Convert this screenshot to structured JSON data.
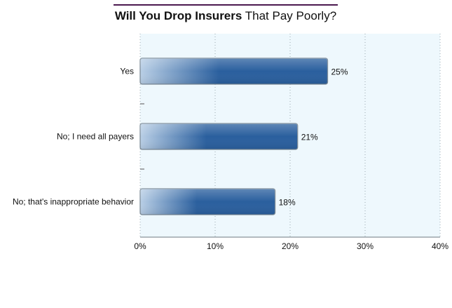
{
  "chart_data": {
    "type": "bar",
    "orientation": "horizontal",
    "title_bold": "Will You Drop Insurers",
    "title_regular": "That Pay Poorly?",
    "categories": [
      "Yes",
      "No; I need all payers",
      "No; that's inappropriate behavior"
    ],
    "values": [
      25,
      21,
      18
    ],
    "value_labels": [
      "25%",
      "21%",
      "18%"
    ],
    "xlim": [
      0,
      40
    ],
    "x_ticks": [
      0,
      10,
      20,
      30,
      40
    ],
    "x_tick_labels": [
      "0%",
      "10%",
      "20%",
      "30%",
      "40%"
    ],
    "grid": "vertical dotted",
    "colors": {
      "bar_dark": "#2a5f9e",
      "bar_light": "#b9cfe6",
      "plot_bg": "#eef8fd",
      "title_rule": "#4b1a4f"
    }
  }
}
